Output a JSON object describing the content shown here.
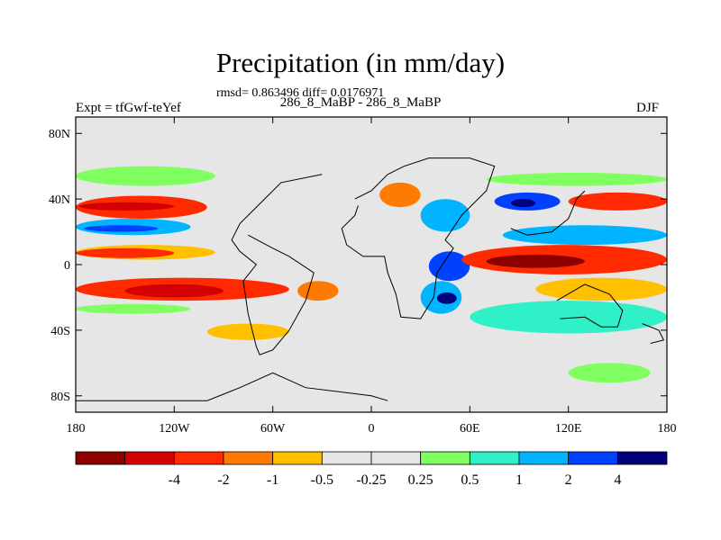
{
  "chart_data": {
    "type": "heatmap",
    "title": "Precipitation (in mm/day)",
    "stats_text": "rmsd= 0.863496 diff= 0.0176971",
    "subtitle": "286_8_MaBP - 286_8_MaBP",
    "left_label": "Expt = tfGwf-teYef",
    "right_label": "DJF",
    "x_ticks": [
      "180",
      "120W",
      "60W",
      "0",
      "60E",
      "120E",
      "180"
    ],
    "y_ticks": [
      "80N",
      "40N",
      "0",
      "40S",
      "80S"
    ],
    "xlim": [
      -180,
      180
    ],
    "ylim": [
      -90,
      90
    ],
    "colorbar": {
      "colors": [
        "#8c0000",
        "#d20000",
        "#ff2a00",
        "#ff7a00",
        "#ffc000",
        "#e6e6e6",
        "#e6e6e6",
        "#80ff60",
        "#30f0c8",
        "#00b4ff",
        "#0040ff",
        "#00007a"
      ],
      "labels": [
        "-4",
        "-2",
        "-1",
        "-0.5",
        "-0.25",
        "0.25",
        "0.5",
        "1",
        "2",
        "4"
      ]
    },
    "fill_color": "#e6e6e6",
    "anomalies": [
      {
        "lon": [
          -180,
          -100
        ],
        "lat": [
          28,
          42
        ],
        "color": "#ff2a00"
      },
      {
        "lon": [
          -178,
          -120
        ],
        "lat": [
          33,
          38
        ],
        "color": "#d20000"
      },
      {
        "lon": [
          -180,
          -95
        ],
        "lat": [
          48,
          60
        ],
        "color": "#80ff60"
      },
      {
        "lon": [
          -180,
          -110
        ],
        "lat": [
          18,
          28
        ],
        "color": "#00b4ff"
      },
      {
        "lon": [
          -175,
          -130
        ],
        "lat": [
          20,
          24
        ],
        "color": "#0040ff"
      },
      {
        "lon": [
          -180,
          -95
        ],
        "lat": [
          3,
          12
        ],
        "color": "#ffc000"
      },
      {
        "lon": [
          -180,
          -120
        ],
        "lat": [
          4,
          10
        ],
        "color": "#ff2a00"
      },
      {
        "lon": [
          -180,
          -50
        ],
        "lat": [
          -22,
          -8
        ],
        "color": "#ff2a00"
      },
      {
        "lon": [
          -150,
          -90
        ],
        "lat": [
          -20,
          -12
        ],
        "color": "#d20000"
      },
      {
        "lon": [
          -180,
          -110
        ],
        "lat": [
          -30,
          -24
        ],
        "color": "#80ff60"
      },
      {
        "lon": [
          -45,
          -20
        ],
        "lat": [
          -22,
          -10
        ],
        "color": "#ff7a00"
      },
      {
        "lon": [
          -100,
          -50
        ],
        "lat": [
          -46,
          -36
        ],
        "color": "#ffc000"
      },
      {
        "lon": [
          5,
          30
        ],
        "lat": [
          35,
          50
        ],
        "color": "#ff7a00"
      },
      {
        "lon": [
          30,
          60
        ],
        "lat": [
          20,
          40
        ],
        "color": "#00b4ff"
      },
      {
        "lon": [
          35,
          60
        ],
        "lat": [
          -10,
          8
        ],
        "color": "#0040ff"
      },
      {
        "lon": [
          30,
          55
        ],
        "lat": [
          -30,
          -10
        ],
        "color": "#00b4ff"
      },
      {
        "lon": [
          40,
          52
        ],
        "lat": [
          -24,
          -17
        ],
        "color": "#00007a"
      },
      {
        "lon": [
          55,
          180
        ],
        "lat": [
          -6,
          12
        ],
        "color": "#ff2a00"
      },
      {
        "lon": [
          70,
          130
        ],
        "lat": [
          -2,
          6
        ],
        "color": "#8c0000"
      },
      {
        "lon": [
          80,
          180
        ],
        "lat": [
          12,
          24
        ],
        "color": "#00b4ff"
      },
      {
        "lon": [
          100,
          180
        ],
        "lat": [
          -22,
          -8
        ],
        "color": "#ffc000"
      },
      {
        "lon": [
          60,
          180
        ],
        "lat": [
          -42,
          -22
        ],
        "color": "#30f0c8"
      },
      {
        "lon": [
          75,
          115
        ],
        "lat": [
          33,
          44
        ],
        "color": "#0040ff"
      },
      {
        "lon": [
          85,
          100
        ],
        "lat": [
          35,
          40
        ],
        "color": "#00007a"
      },
      {
        "lon": [
          120,
          180
        ],
        "lat": [
          33,
          44
        ],
        "color": "#ff2a00"
      },
      {
        "lon": [
          70,
          180
        ],
        "lat": [
          48,
          56
        ],
        "color": "#80ff60"
      },
      {
        "lon": [
          120,
          170
        ],
        "lat": [
          -72,
          -60
        ],
        "color": "#80ff60"
      }
    ],
    "coastlines": [
      [
        [
          -180,
          -83
        ],
        [
          -100,
          -83
        ],
        [
          -80,
          -75
        ],
        [
          -60,
          -66
        ],
        [
          -40,
          -75
        ],
        [
          0,
          -80
        ],
        [
          10,
          -83
        ]
      ],
      [
        [
          -30,
          55
        ],
        [
          -55,
          50
        ],
        [
          -65,
          40
        ],
        [
          -80,
          25
        ],
        [
          -85,
          15
        ],
        [
          -80,
          8
        ],
        [
          -70,
          0
        ],
        [
          -78,
          -10
        ],
        [
          -75,
          -30
        ],
        [
          -70,
          -50
        ],
        [
          -68,
          -55
        ],
        [
          -60,
          -52
        ],
        [
          -50,
          -40
        ],
        [
          -40,
          -22
        ],
        [
          -35,
          -5
        ],
        [
          -50,
          5
        ],
        [
          -60,
          10
        ],
        [
          -75,
          18
        ]
      ],
      [
        [
          -10,
          40
        ],
        [
          0,
          45
        ],
        [
          10,
          55
        ],
        [
          20,
          60
        ],
        [
          35,
          65
        ],
        [
          60,
          65
        ],
        [
          75,
          60
        ],
        [
          70,
          45
        ],
        [
          55,
          30
        ],
        [
          45,
          15
        ],
        [
          50,
          10
        ],
        [
          40,
          -5
        ],
        [
          38,
          -20
        ],
        [
          30,
          -33
        ],
        [
          18,
          -32
        ],
        [
          15,
          -18
        ],
        [
          10,
          -5
        ],
        [
          8,
          5
        ],
        [
          -5,
          5
        ],
        [
          -15,
          12
        ],
        [
          -18,
          22
        ],
        [
          -10,
          30
        ],
        [
          -8,
          36
        ]
      ],
      [
        [
          85,
          22
        ],
        [
          95,
          18
        ],
        [
          110,
          20
        ],
        [
          120,
          28
        ],
        [
          125,
          40
        ],
        [
          130,
          45
        ]
      ],
      [
        [
          113,
          -22
        ],
        [
          130,
          -12
        ],
        [
          145,
          -18
        ],
        [
          153,
          -28
        ],
        [
          150,
          -38
        ],
        [
          140,
          -38
        ],
        [
          130,
          -32
        ],
        [
          115,
          -33
        ]
      ],
      [
        [
          165,
          -36
        ],
        [
          175,
          -40
        ],
        [
          178,
          -46
        ],
        [
          170,
          -48
        ]
      ]
    ]
  }
}
